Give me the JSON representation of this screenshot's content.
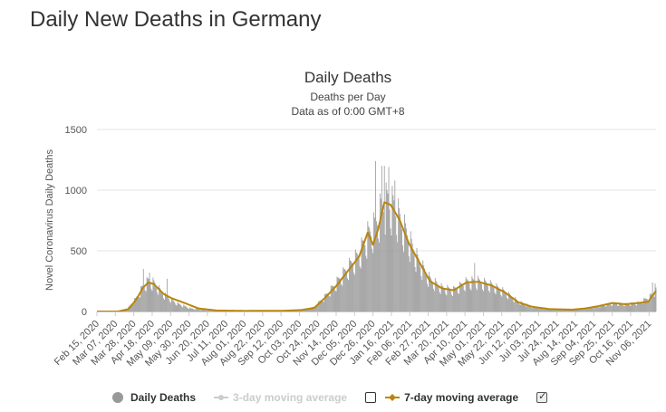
{
  "page": {
    "heading": "Daily New Deaths in Germany"
  },
  "chart_data": {
    "type": "bar",
    "title": "Daily Deaths",
    "subtitles": [
      "Deaths per Day",
      "Data as of 0:00 GMT+8"
    ],
    "ylabel": "Novel Coronavirus Daily Deaths",
    "xlabel": "",
    "ylim": [
      0,
      1500
    ],
    "yticks": [
      0,
      500,
      1000,
      1500
    ],
    "x_start": "2020-02-15",
    "x_end": "2021-11-14",
    "xtick_labels": [
      "Feb 15, 2020",
      "Mar 07, 2020",
      "Mar 28, 2020",
      "Apr 18, 2020",
      "May 09, 2020",
      "May 30, 2020",
      "Jun 20, 2020",
      "Jul 11, 2020",
      "Aug 01, 2020",
      "Aug 22, 2020",
      "Sep 12, 2020",
      "Oct 03, 2020",
      "Oct 24, 2020",
      "Nov 14, 2020",
      "Dec 05, 2020",
      "Dec 26, 2020",
      "Jan 16, 2021",
      "Feb 06, 2021",
      "Feb 27, 2021",
      "Mar 20, 2021",
      "Apr 10, 2021",
      "May 01, 2021",
      "May 22, 2021",
      "Jun 12, 2021",
      "Jul 03, 2021",
      "Jul 24, 2021",
      "Aug 14, 2021",
      "Sep 04, 2021",
      "Sep 25, 2021",
      "Oct 16, 2021",
      "Nov 06, 2021"
    ],
    "grid": true,
    "legend_position": "bottom",
    "colors": {
      "bars": "#999999",
      "ma7": "#b8860b",
      "ma3": "#cccccc",
      "grid": "#e6e6e6"
    },
    "series": [
      {
        "name": "Daily Deaths",
        "kind": "bar",
        "anchors": [
          [
            "2020-02-15",
            0
          ],
          [
            "2020-03-10",
            0
          ],
          [
            "2020-03-20",
            15
          ],
          [
            "2020-03-30",
            100
          ],
          [
            "2020-04-08",
            210
          ],
          [
            "2020-04-14",
            250
          ],
          [
            "2020-04-20",
            230
          ],
          [
            "2020-05-01",
            140
          ],
          [
            "2020-05-15",
            70
          ],
          [
            "2020-06-01",
            25
          ],
          [
            "2020-06-20",
            10
          ],
          [
            "2020-07-15",
            4
          ],
          [
            "2020-08-15",
            4
          ],
          [
            "2020-09-15",
            6
          ],
          [
            "2020-10-05",
            12
          ],
          [
            "2020-10-20",
            35
          ],
          [
            "2020-11-01",
            120
          ],
          [
            "2020-11-14",
            230
          ],
          [
            "2020-11-28",
            360
          ],
          [
            "2020-12-10",
            460
          ],
          [
            "2020-12-20",
            620
          ],
          [
            "2020-12-28",
            690
          ],
          [
            "2021-01-05",
            850
          ],
          [
            "2021-01-12",
            900
          ],
          [
            "2021-01-20",
            840
          ],
          [
            "2021-02-01",
            650
          ],
          [
            "2021-02-15",
            420
          ],
          [
            "2021-03-01",
            260
          ],
          [
            "2021-03-15",
            190
          ],
          [
            "2021-03-28",
            175
          ],
          [
            "2021-04-12",
            240
          ],
          [
            "2021-04-25",
            245
          ],
          [
            "2021-05-10",
            215
          ],
          [
            "2021-05-25",
            160
          ],
          [
            "2021-06-10",
            80
          ],
          [
            "2021-06-25",
            40
          ],
          [
            "2021-07-15",
            20
          ],
          [
            "2021-08-10",
            15
          ],
          [
            "2021-08-25",
            25
          ],
          [
            "2021-09-10",
            45
          ],
          [
            "2021-09-25",
            65
          ],
          [
            "2021-10-10",
            60
          ],
          [
            "2021-10-25",
            70
          ],
          [
            "2021-11-05",
            110
          ],
          [
            "2021-11-14",
            165
          ]
        ],
        "peaks": [
          [
            "2020-04-08",
            350
          ],
          [
            "2020-04-15",
            320
          ],
          [
            "2020-05-05",
            270
          ],
          [
            "2020-12-29",
            1240
          ],
          [
            "2021-01-05",
            1200
          ],
          [
            "2021-01-08",
            1200
          ],
          [
            "2021-01-13",
            1190
          ],
          [
            "2021-01-20",
            1080
          ],
          [
            "2021-04-21",
            400
          ],
          [
            "2021-11-10",
            240
          ],
          [
            "2021-11-13",
            230
          ]
        ]
      },
      {
        "name": "3-day moving average",
        "kind": "line",
        "enabled": false
      },
      {
        "name": "7-day moving average",
        "kind": "line",
        "enabled": true,
        "anchors": [
          [
            "2020-02-15",
            0
          ],
          [
            "2020-03-10",
            0
          ],
          [
            "2020-03-22",
            20
          ],
          [
            "2020-03-31",
            100
          ],
          [
            "2020-04-08",
            200
          ],
          [
            "2020-04-14",
            240
          ],
          [
            "2020-04-20",
            225
          ],
          [
            "2020-05-01",
            145
          ],
          [
            "2020-05-10",
            110
          ],
          [
            "2020-05-25",
            70
          ],
          [
            "2020-06-10",
            25
          ],
          [
            "2020-07-01",
            8
          ],
          [
            "2020-08-01",
            5
          ],
          [
            "2020-09-15",
            6
          ],
          [
            "2020-10-05",
            12
          ],
          [
            "2020-10-20",
            30
          ],
          [
            "2020-11-01",
            110
          ],
          [
            "2020-11-14",
            210
          ],
          [
            "2020-11-28",
            340
          ],
          [
            "2020-12-10",
            450
          ],
          [
            "2020-12-20",
            650
          ],
          [
            "2020-12-26",
            550
          ],
          [
            "2021-01-01",
            680
          ],
          [
            "2021-01-08",
            900
          ],
          [
            "2021-01-15",
            880
          ],
          [
            "2021-01-25",
            760
          ],
          [
            "2021-02-05",
            560
          ],
          [
            "2021-02-15",
            430
          ],
          [
            "2021-03-01",
            250
          ],
          [
            "2021-03-15",
            190
          ],
          [
            "2021-03-28",
            175
          ],
          [
            "2021-04-12",
            240
          ],
          [
            "2021-04-25",
            245
          ],
          [
            "2021-05-10",
            215
          ],
          [
            "2021-05-25",
            160
          ],
          [
            "2021-06-10",
            75
          ],
          [
            "2021-06-25",
            40
          ],
          [
            "2021-07-15",
            20
          ],
          [
            "2021-08-10",
            15
          ],
          [
            "2021-08-25",
            25
          ],
          [
            "2021-09-10",
            45
          ],
          [
            "2021-09-25",
            70
          ],
          [
            "2021-10-10",
            60
          ],
          [
            "2021-10-25",
            70
          ],
          [
            "2021-11-05",
            80
          ],
          [
            "2021-11-14",
            170
          ]
        ]
      }
    ]
  },
  "legend": {
    "items": [
      {
        "label": "Daily Deaths",
        "icon": "circle",
        "enabled": true
      },
      {
        "label": "3-day moving average",
        "icon": "line-dot",
        "enabled": false,
        "checkbox_checked": false
      },
      {
        "label": "7-day moving average",
        "icon": "line-diamond",
        "enabled": true,
        "checkbox_checked": true
      }
    ]
  }
}
